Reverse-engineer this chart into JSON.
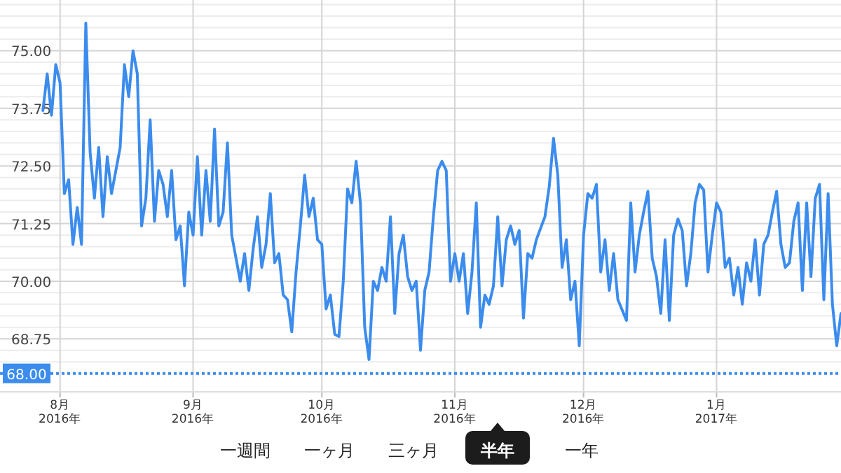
{
  "chart_data": {
    "type": "line",
    "x": [
      "2016-07-28",
      "2016-07-29",
      "2016-07-30",
      "2016-07-31",
      "2016-08-01",
      "2016-08-02",
      "2016-08-03",
      "2016-08-04",
      "2016-08-05",
      "2016-08-06",
      "2016-08-07",
      "2016-08-08",
      "2016-08-09",
      "2016-08-10",
      "2016-08-11",
      "2016-08-12",
      "2016-08-13",
      "2016-08-14",
      "2016-08-15",
      "2016-08-16",
      "2016-08-17",
      "2016-08-18",
      "2016-08-19",
      "2016-08-20",
      "2016-08-21",
      "2016-08-22",
      "2016-08-23",
      "2016-08-24",
      "2016-08-25",
      "2016-08-26",
      "2016-08-27",
      "2016-08-28",
      "2016-08-29",
      "2016-08-30",
      "2016-08-31",
      "2016-09-01",
      "2016-09-02",
      "2016-09-03",
      "2016-09-04",
      "2016-09-05",
      "2016-09-06",
      "2016-09-07",
      "2016-09-08",
      "2016-09-09",
      "2016-09-10",
      "2016-09-11",
      "2016-09-12",
      "2016-09-13",
      "2016-09-14",
      "2016-09-15",
      "2016-09-16",
      "2016-09-17",
      "2016-09-18",
      "2016-09-19",
      "2016-09-20",
      "2016-09-21",
      "2016-09-22",
      "2016-09-23",
      "2016-09-24",
      "2016-09-25",
      "2016-09-26",
      "2016-09-27",
      "2016-09-28",
      "2016-09-29",
      "2016-09-30",
      "2016-10-01",
      "2016-10-02",
      "2016-10-03",
      "2016-10-04",
      "2016-10-05",
      "2016-10-06",
      "2016-10-07",
      "2016-10-08",
      "2016-10-09",
      "2016-10-10",
      "2016-10-11",
      "2016-10-12",
      "2016-10-13",
      "2016-10-14",
      "2016-10-15",
      "2016-10-16",
      "2016-10-17",
      "2016-10-18",
      "2016-10-19",
      "2016-10-20",
      "2016-10-21",
      "2016-10-22",
      "2016-10-23",
      "2016-10-24",
      "2016-10-25",
      "2016-10-26",
      "2016-10-27",
      "2016-10-28",
      "2016-10-29",
      "2016-10-30",
      "2016-10-31",
      "2016-11-01",
      "2016-11-02",
      "2016-11-03",
      "2016-11-04",
      "2016-11-05",
      "2016-11-06",
      "2016-11-07",
      "2016-11-08",
      "2016-11-09",
      "2016-11-10",
      "2016-11-11",
      "2016-11-12",
      "2016-11-13",
      "2016-11-14",
      "2016-11-15",
      "2016-11-16",
      "2016-11-17",
      "2016-11-18",
      "2016-11-19",
      "2016-11-20",
      "2016-11-22",
      "2016-11-23",
      "2016-11-24",
      "2016-11-25",
      "2016-11-26",
      "2016-11-27",
      "2016-11-28",
      "2016-11-29",
      "2016-11-30",
      "2016-12-01",
      "2016-12-02",
      "2016-12-03",
      "2016-12-04",
      "2016-12-05",
      "2016-12-06",
      "2016-12-07",
      "2016-12-08",
      "2016-12-09",
      "2016-12-11",
      "2016-12-12",
      "2016-12-13",
      "2016-12-14",
      "2016-12-15",
      "2016-12-16",
      "2016-12-17",
      "2016-12-18",
      "2016-12-19",
      "2016-12-20",
      "2016-12-21",
      "2016-12-22",
      "2016-12-23",
      "2016-12-24",
      "2016-12-25",
      "2016-12-26",
      "2016-12-27",
      "2016-12-28",
      "2016-12-29",
      "2016-12-30",
      "2016-12-31",
      "2017-01-01",
      "2017-01-02",
      "2017-01-03",
      "2017-01-04",
      "2017-01-05",
      "2017-01-06",
      "2017-01-07",
      "2017-01-08",
      "2017-01-09",
      "2017-01-10",
      "2017-01-11",
      "2017-01-12",
      "2017-01-13",
      "2017-01-14",
      "2017-01-15",
      "2017-01-16",
      "2017-01-17",
      "2017-01-18",
      "2017-01-19",
      "2017-01-20",
      "2017-01-21",
      "2017-01-22",
      "2017-01-23",
      "2017-01-24",
      "2017-01-25",
      "2017-01-26",
      "2017-01-27",
      "2017-01-28",
      "2017-01-29",
      "2017-01-30"
    ],
    "series": [
      {
        "color": "#3b8ced",
        "values": [
          73.7,
          74.5,
          73.6,
          74.7,
          74.3,
          71.9,
          72.2,
          70.8,
          71.6,
          70.8,
          75.6,
          72.8,
          71.8,
          72.9,
          71.4,
          72.7,
          71.9,
          72.4,
          72.9,
          74.7,
          74.0,
          75.0,
          74.5,
          71.2,
          71.8,
          73.5,
          71.3,
          72.4,
          72.1,
          71.4,
          72.4,
          70.9,
          71.2,
          69.9,
          71.5,
          71.0,
          72.7,
          71.0,
          72.4,
          71.3,
          73.3,
          71.2,
          71.5,
          73.0,
          71.0,
          70.5,
          70.0,
          70.6,
          69.8,
          70.7,
          71.4,
          70.3,
          70.8,
          71.9,
          70.4,
          70.6,
          69.7,
          69.6,
          68.9,
          70.2,
          71.2,
          72.3,
          71.4,
          71.8,
          70.9,
          70.8,
          69.4,
          69.7,
          68.85,
          68.8,
          70.0,
          72.0,
          71.7,
          72.6,
          71.7,
          69.0,
          68.3,
          70.0,
          69.8,
          70.3,
          70.0,
          71.4,
          69.3,
          70.6,
          71.0,
          70.1,
          69.8,
          70.0,
          68.5,
          69.8,
          70.2,
          71.4,
          72.4,
          72.6,
          72.4,
          70.0,
          70.6,
          70.0,
          70.6,
          69.3,
          70.2,
          71.7,
          69.0,
          69.7,
          69.5,
          69.9,
          71.4,
          69.9,
          70.9,
          71.2,
          70.8,
          71.1,
          69.2,
          70.6,
          70.5,
          70.9,
          71.4,
          72.05,
          73.1,
          72.3,
          70.3,
          70.9,
          69.6,
          70.0,
          68.6,
          71.0,
          71.9,
          71.8,
          72.1,
          70.2,
          70.9,
          69.8,
          70.6,
          69.6,
          69.15,
          71.7,
          70.2,
          71.0,
          71.5,
          71.95,
          70.5,
          70.1,
          69.3,
          70.9,
          69.15,
          71.0,
          71.35,
          71.1,
          69.9,
          70.6,
          71.7,
          72.1,
          71.98,
          70.2,
          71.0,
          71.7,
          71.5,
          70.3,
          70.5,
          69.7,
          70.3,
          69.5,
          70.4,
          70.0,
          70.9,
          69.7,
          70.8,
          71.0,
          71.5,
          71.95,
          70.8,
          70.3,
          70.4,
          71.3,
          71.7,
          69.8,
          71.7,
          70.1,
          71.8,
          72.1,
          69.6,
          71.9,
          69.5,
          68.6,
          69.3
        ]
      }
    ],
    "xlim": [
      "2016-07-18",
      "2017-01-30"
    ],
    "xticks": [
      {
        "value": "2016-08-01",
        "label": "8月\n2016年"
      },
      {
        "value": "2016-09-01",
        "label": "9月\n2016年"
      },
      {
        "value": "2016-10-01",
        "label": "10月\n2016年"
      },
      {
        "value": "2016-11-01",
        "label": "11月\n2016年"
      },
      {
        "value": "2016-12-01",
        "label": "12月\n2016年"
      },
      {
        "value": "2017-01-01",
        "label": "1月\n2017年"
      }
    ],
    "ylim": [
      67.6,
      76.1
    ],
    "yticks": [
      {
        "value": 68.25,
        "label": null
      },
      {
        "value": 68.5,
        "label": null
      },
      {
        "value": 68.75,
        "label": "68.75"
      },
      {
        "value": 69,
        "label": null
      },
      {
        "value": 69.25,
        "label": null
      },
      {
        "value": 69.5,
        "label": null
      },
      {
        "value": 69.75,
        "label": null
      },
      {
        "value": 70,
        "label": "70.00"
      },
      {
        "value": 70.25,
        "label": null
      },
      {
        "value": 70.5,
        "label": null
      },
      {
        "value": 70.75,
        "label": null
      },
      {
        "value": 71,
        "label": null
      },
      {
        "value": 71.25,
        "label": "71.25"
      },
      {
        "value": 71.5,
        "label": null
      },
      {
        "value": 71.75,
        "label": null
      },
      {
        "value": 72,
        "label": null
      },
      {
        "value": 72.25,
        "label": null
      },
      {
        "value": 72.5,
        "label": "72.50"
      },
      {
        "value": 72.75,
        "label": null
      },
      {
        "value": 73,
        "label": null
      },
      {
        "value": 73.25,
        "label": null
      },
      {
        "value": 73.5,
        "label": null
      },
      {
        "value": 73.75,
        "label": "73.75"
      },
      {
        "value": 74,
        "label": null
      },
      {
        "value": 74.25,
        "label": null
      },
      {
        "value": 74.5,
        "label": null
      },
      {
        "value": 74.75,
        "label": null
      },
      {
        "value": 75,
        "label": "75.00"
      },
      {
        "value": 75.25,
        "label": null
      },
      {
        "value": 75.5,
        "label": null
      },
      {
        "value": 75.75,
        "label": null
      },
      {
        "value": 76,
        "label": null
      }
    ],
    "grid": true,
    "ref_lines": [
      {
        "axis": "y",
        "value": 68,
        "label": "68.00",
        "color": "#3b8ced",
        "line_style": "dotted"
      }
    ],
    "annotations": [
      "一週間",
      "一ヶ月",
      "三ヶ月",
      "半年",
      "一年"
    ]
  }
}
